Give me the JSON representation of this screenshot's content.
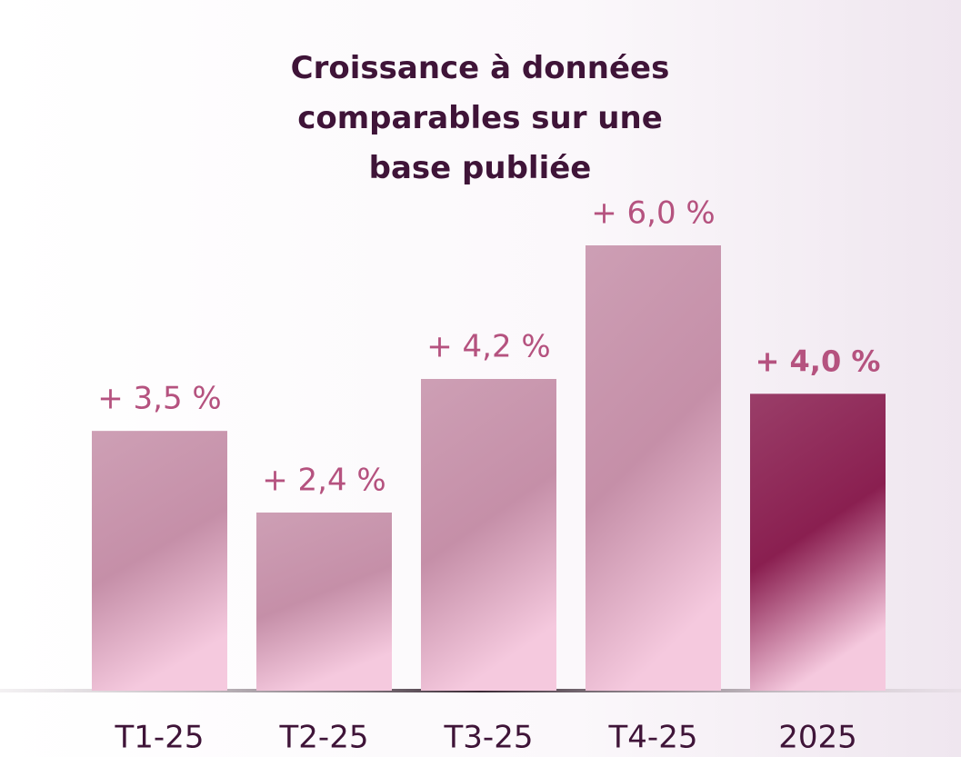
{
  "chart_data": {
    "type": "bar",
    "title": "Croissance à données comparables sur une base publiée",
    "categories": [
      "T1-25",
      "T2-25",
      "T3-25",
      "T4-25",
      "2025"
    ],
    "values": [
      3.5,
      2.4,
      4.2,
      6.0,
      4.0
    ],
    "value_labels": [
      "+ 3,5 %",
      "+ 2,4 %",
      "+ 4,2 %",
      "+ 6,0 %",
      "+ 4,0 %"
    ],
    "colors": [
      "#c58fa8",
      "#c58fa8",
      "#c58fa8",
      "#c58fa8",
      "#8a1f50"
    ],
    "ylim": [
      0,
      6
    ]
  }
}
